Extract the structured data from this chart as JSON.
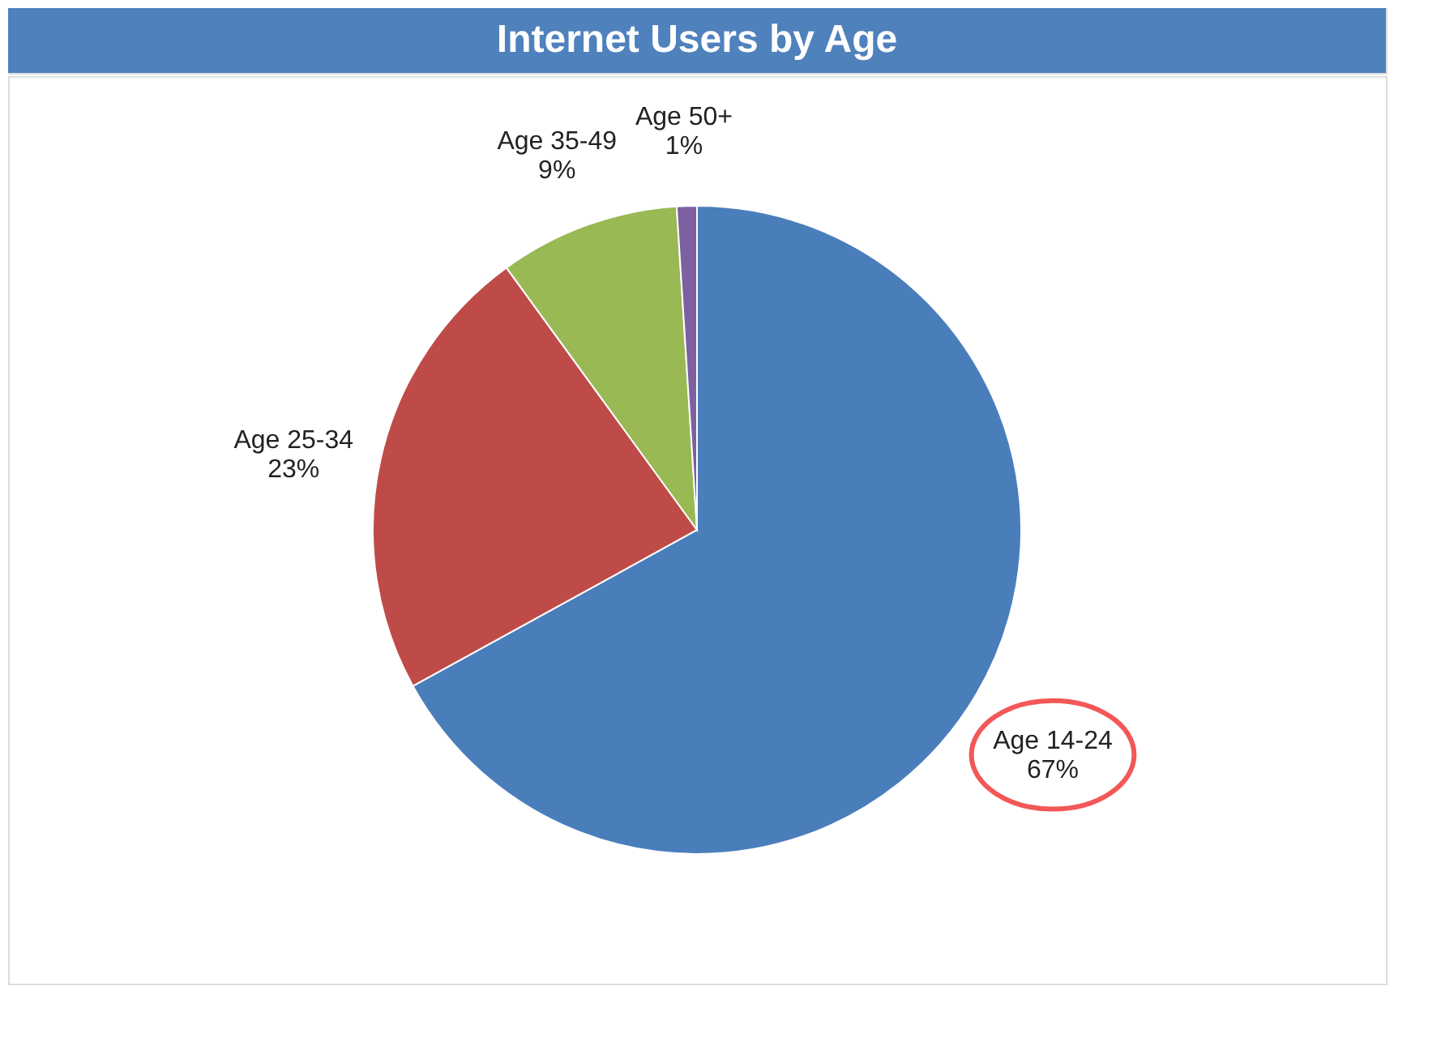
{
  "chart_data": {
    "type": "pie",
    "title": "Internet Users by Age",
    "categories": [
      "Age 14-24",
      "Age 25-34",
      "Age 35-49",
      "Age 50+"
    ],
    "values": [
      67,
      23,
      9,
      1
    ],
    "colors": [
      "#4a7ebb",
      "#be4b48",
      "#98b954",
      "#7d60a0"
    ],
    "value_labels": [
      "67%",
      "23%",
      "9%",
      "1%"
    ],
    "legend": false
  }
}
